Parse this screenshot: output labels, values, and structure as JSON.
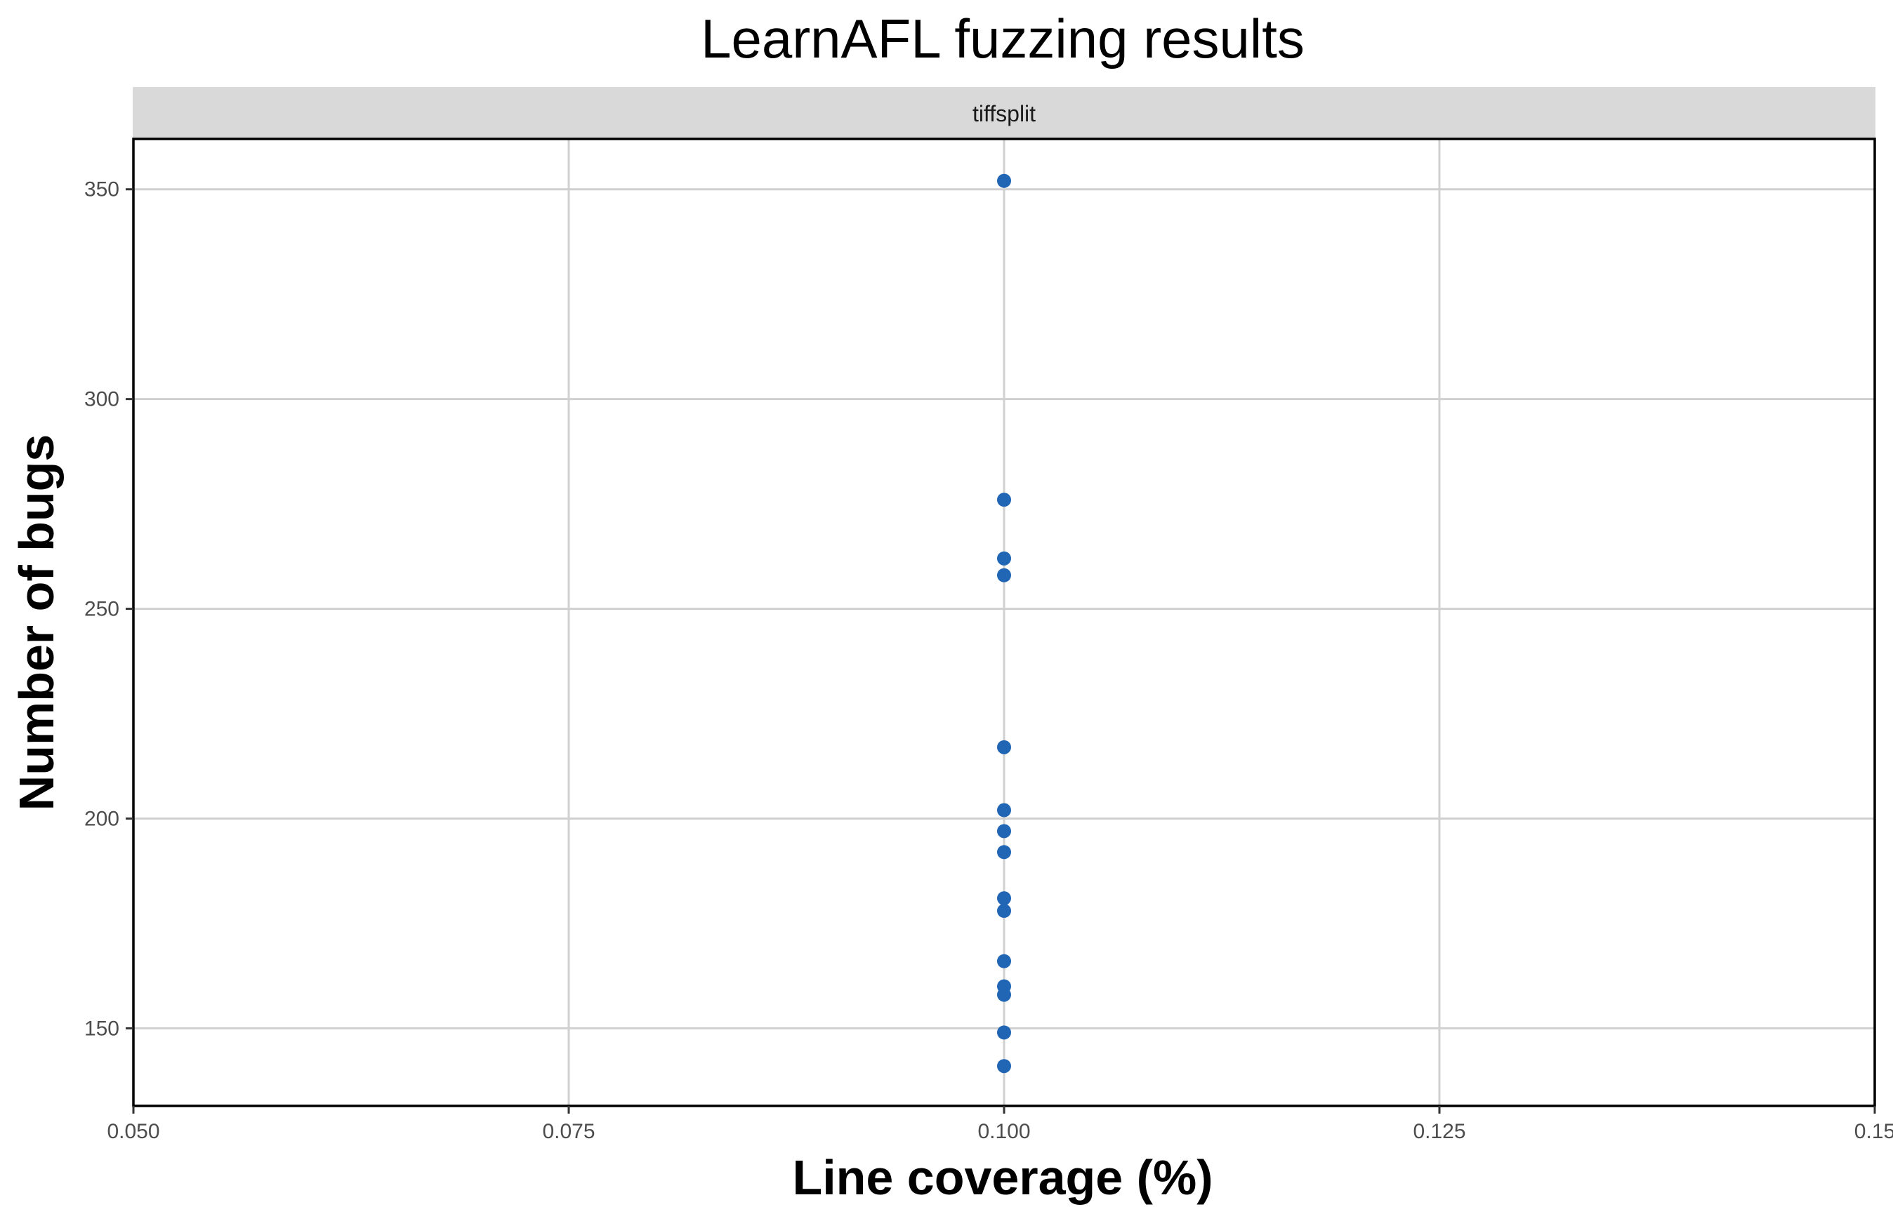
{
  "chart_data": {
    "type": "scatter",
    "title": "LearnAFL fuzzing results",
    "facet": "tiffsplit",
    "xlabel": "Line coverage (%)",
    "ylabel": "Number of bugs",
    "xlim": [
      0.05,
      0.15
    ],
    "ylim": [
      131.5,
      362
    ],
    "x_ticks": [
      "0.050",
      "0.075",
      "0.100",
      "0.125",
      "0.15"
    ],
    "x_tick_values": [
      0.05,
      0.075,
      0.1,
      0.125,
      0.15
    ],
    "y_ticks": [
      "150",
      "200",
      "250",
      "300",
      "350"
    ],
    "y_tick_values": [
      150,
      200,
      250,
      300,
      350
    ],
    "grid": true,
    "point_color": "#2166b4",
    "points": [
      {
        "x": 0.1,
        "y": 352
      },
      {
        "x": 0.1,
        "y": 276
      },
      {
        "x": 0.1,
        "y": 262
      },
      {
        "x": 0.1,
        "y": 258
      },
      {
        "x": 0.1,
        "y": 217
      },
      {
        "x": 0.1,
        "y": 202
      },
      {
        "x": 0.1,
        "y": 197
      },
      {
        "x": 0.1,
        "y": 192
      },
      {
        "x": 0.1,
        "y": 181
      },
      {
        "x": 0.1,
        "y": 178
      },
      {
        "x": 0.1,
        "y": 166
      },
      {
        "x": 0.1,
        "y": 160
      },
      {
        "x": 0.1,
        "y": 158
      },
      {
        "x": 0.1,
        "y": 149
      },
      {
        "x": 0.1,
        "y": 141
      }
    ]
  }
}
